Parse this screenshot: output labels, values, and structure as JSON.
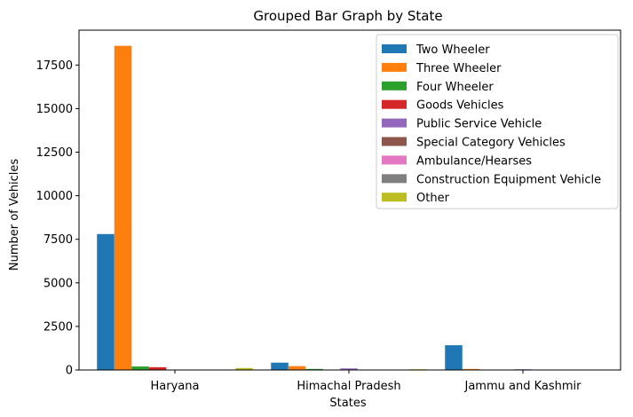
{
  "chart_data": {
    "type": "bar",
    "title": "Grouped Bar Graph by State",
    "xlabel": "States",
    "ylabel": "Number of Vehicles",
    "categories": [
      "Haryana",
      "Himachal Pradesh",
      "Jammu and Kashmir"
    ],
    "ylim": [
      0,
      19500
    ],
    "yticks": [
      0,
      2500,
      5000,
      7500,
      10000,
      12500,
      15000,
      17500
    ],
    "grid": false,
    "legend_position": "top-right",
    "series": [
      {
        "name": "Two Wheeler",
        "color": "#1f77b4",
        "values": [
          7800,
          420,
          1420
        ]
      },
      {
        "name": "Three Wheeler",
        "color": "#ff7f0e",
        "values": [
          18600,
          220,
          60
        ]
      },
      {
        "name": "Four Wheeler",
        "color": "#2ca02c",
        "values": [
          200,
          60,
          10
        ]
      },
      {
        "name": "Goods Vehicles",
        "color": "#d62728",
        "values": [
          160,
          20,
          5
        ]
      },
      {
        "name": "Public Service Vehicle",
        "color": "#9467bd",
        "values": [
          10,
          90,
          40
        ]
      },
      {
        "name": "Special Category Vehicles",
        "color": "#8c564b",
        "values": [
          5,
          5,
          5
        ]
      },
      {
        "name": "Ambulance/Hearses",
        "color": "#e377c2",
        "values": [
          5,
          5,
          5
        ]
      },
      {
        "name": "Construction Equipment Vehicle",
        "color": "#7f7f7f",
        "values": [
          5,
          5,
          5
        ]
      },
      {
        "name": "Other",
        "color": "#bcbd22",
        "values": [
          110,
          40,
          10
        ]
      }
    ]
  }
}
